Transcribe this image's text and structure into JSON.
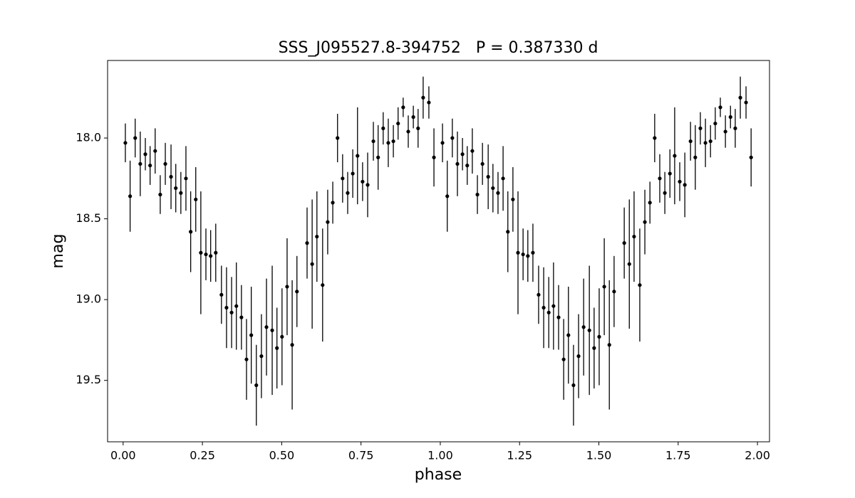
{
  "chart_data": {
    "type": "errorbar",
    "title": "SSS_J095527.8-394752   P = 0.387330 d",
    "x_label": "phase",
    "y_label": "mag",
    "color": "#000000",
    "x": [
      0.007,
      0.022,
      0.038,
      0.054,
      0.07,
      0.085,
      0.101,
      0.117,
      0.133,
      0.151,
      0.166,
      0.182,
      0.198,
      0.213,
      0.229,
      0.245,
      0.261,
      0.276,
      0.292,
      0.31,
      0.326,
      0.342,
      0.357,
      0.373,
      0.389,
      0.404,
      0.42,
      0.436,
      0.452,
      0.47,
      0.485,
      0.501,
      0.517,
      0.533,
      0.548,
      0.58,
      0.596,
      0.611,
      0.629,
      0.645,
      0.661,
      0.676,
      0.692,
      0.708,
      0.724,
      0.739,
      0.755,
      0.771,
      0.789,
      0.804,
      0.82,
      0.836,
      0.852,
      0.867,
      0.883,
      0.899,
      0.915,
      0.93,
      0.946,
      0.964,
      0.98,
      1.007,
      1.022,
      1.038,
      1.054,
      1.07,
      1.085,
      1.101,
      1.117,
      1.133,
      1.151,
      1.166,
      1.182,
      1.198,
      1.213,
      1.229,
      1.245,
      1.261,
      1.276,
      1.292,
      1.31,
      1.326,
      1.342,
      1.357,
      1.373,
      1.389,
      1.404,
      1.42,
      1.436,
      1.452,
      1.47,
      1.485,
      1.501,
      1.517,
      1.533,
      1.548,
      1.58,
      1.596,
      1.611,
      1.629,
      1.645,
      1.661,
      1.676,
      1.692,
      1.708,
      1.724,
      1.739,
      1.755,
      1.771,
      1.789,
      1.804,
      1.82,
      1.836,
      1.852,
      1.867,
      1.883,
      1.899,
      1.915,
      1.93,
      1.946,
      1.964,
      1.98
    ],
    "values": [
      18.03,
      18.36,
      18.0,
      18.16,
      18.1,
      18.17,
      18.08,
      18.35,
      18.16,
      18.24,
      18.31,
      18.34,
      18.25,
      18.58,
      18.38,
      18.71,
      18.72,
      18.73,
      18.71,
      18.97,
      19.05,
      19.08,
      19.04,
      19.11,
      19.37,
      19.22,
      19.53,
      19.35,
      19.17,
      19.19,
      19.3,
      19.23,
      18.92,
      19.28,
      18.95,
      18.65,
      18.78,
      18.61,
      18.91,
      18.52,
      18.4,
      18.0,
      18.25,
      18.34,
      18.22,
      18.11,
      18.27,
      18.29,
      18.02,
      18.12,
      17.94,
      18.03,
      18.02,
      17.91,
      17.81,
      17.96,
      17.87,
      17.94,
      17.75,
      17.78,
      18.12,
      18.03,
      18.36,
      18.0,
      18.16,
      18.1,
      18.17,
      18.08,
      18.35,
      18.16,
      18.24,
      18.31,
      18.34,
      18.25,
      18.58,
      18.38,
      18.71,
      18.72,
      18.73,
      18.71,
      18.97,
      19.05,
      19.08,
      19.04,
      19.11,
      19.37,
      19.22,
      19.53,
      19.35,
      19.17,
      19.19,
      19.3,
      19.23,
      18.92,
      19.28,
      18.95,
      18.65,
      18.78,
      18.61,
      18.91,
      18.52,
      18.4,
      18.0,
      18.25,
      18.34,
      18.22,
      18.11,
      18.27,
      18.29,
      18.02,
      18.12,
      17.94,
      18.03,
      18.02,
      17.91,
      17.81,
      17.96,
      17.87,
      17.94,
      17.75,
      17.78,
      18.12
    ],
    "errors": [
      0.12,
      0.22,
      0.12,
      0.2,
      0.1,
      0.12,
      0.14,
      0.12,
      0.13,
      0.2,
      0.15,
      0.13,
      0.2,
      0.25,
      0.2,
      0.38,
      0.16,
      0.16,
      0.18,
      0.18,
      0.25,
      0.22,
      0.27,
      0.2,
      0.25,
      0.3,
      0.25,
      0.26,
      0.3,
      0.4,
      0.25,
      0.3,
      0.3,
      0.4,
      0.22,
      0.22,
      0.4,
      0.28,
      0.35,
      0.2,
      0.13,
      0.15,
      0.15,
      0.13,
      0.15,
      0.3,
      0.12,
      0.2,
      0.12,
      0.2,
      0.1,
      0.15,
      0.1,
      0.1,
      0.06,
      0.1,
      0.07,
      0.12,
      0.13,
      0.1,
      0.18,
      0.12,
      0.22,
      0.12,
      0.2,
      0.1,
      0.12,
      0.14,
      0.12,
      0.13,
      0.2,
      0.15,
      0.13,
      0.2,
      0.25,
      0.2,
      0.38,
      0.16,
      0.16,
      0.18,
      0.18,
      0.25,
      0.22,
      0.27,
      0.2,
      0.25,
      0.3,
      0.25,
      0.26,
      0.3,
      0.4,
      0.25,
      0.3,
      0.3,
      0.4,
      0.22,
      0.22,
      0.4,
      0.28,
      0.35,
      0.2,
      0.13,
      0.15,
      0.15,
      0.13,
      0.15,
      0.3,
      0.12,
      0.2,
      0.12,
      0.2,
      0.1,
      0.15,
      0.1,
      0.1,
      0.06,
      0.1,
      0.07,
      0.12,
      0.13,
      0.1,
      0.18
    ],
    "xlim": [
      -0.049,
      2.038
    ],
    "ylim": [
      17.52,
      19.88
    ],
    "y_inverted": true,
    "xticks": [
      {
        "value": 0,
        "label": "0.00"
      },
      {
        "value": 0.25,
        "label": "0.25"
      },
      {
        "value": 0.5,
        "label": "0.50"
      },
      {
        "value": 0.75,
        "label": "0.75"
      },
      {
        "value": 1,
        "label": "1.00"
      },
      {
        "value": 1.25,
        "label": "1.25"
      },
      {
        "value": 1.5,
        "label": "1.50"
      },
      {
        "value": 1.75,
        "label": "1.75"
      },
      {
        "value": 2,
        "label": "2.00"
      }
    ],
    "yticks": [
      {
        "value": 18,
        "label": "18.0"
      },
      {
        "value": 18.5,
        "label": "18.5"
      },
      {
        "value": 19,
        "label": "19.0"
      },
      {
        "value": 19.5,
        "label": "19.5"
      }
    ]
  }
}
